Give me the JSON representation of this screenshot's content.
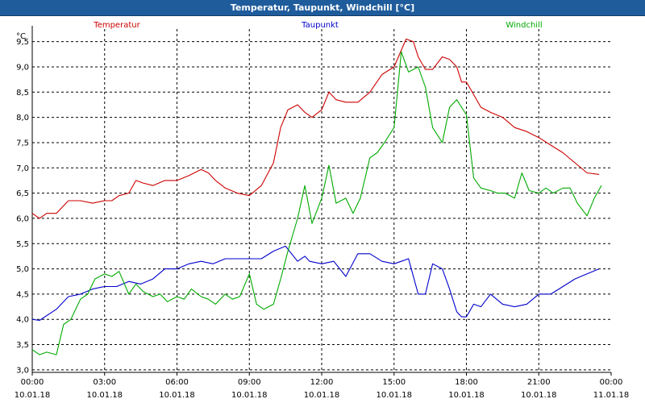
{
  "window": {
    "title": "Temperatur, Taupunkt, Windchill [°C]"
  },
  "colors": {
    "titlebar": "#1f5c9c",
    "temperatur": "#cc0000",
    "taupunkt": "#0000cc",
    "windchill": "#00aa00",
    "grid": "#000000"
  },
  "chart_data": {
    "type": "line",
    "title": "Temperatur, Taupunkt, Windchill [°C]",
    "ylabel": "°C",
    "ylim": [
      2.95,
      9.75
    ],
    "xlim": [
      0,
      24
    ],
    "grid": true,
    "legend_placement": "top",
    "y_ticks": [
      "3,0",
      "3,5",
      "4,0",
      "4,5",
      "5,0",
      "5,5",
      "6,0",
      "6,5",
      "7,0",
      "7,5",
      "8,0",
      "8,5",
      "9,0",
      "9,5"
    ],
    "y_tick_values": [
      3.0,
      3.5,
      4.0,
      4.5,
      5.0,
      5.5,
      6.0,
      6.5,
      7.0,
      7.5,
      8.0,
      8.5,
      9.0,
      9.5
    ],
    "x_tick_hours": [
      0,
      3,
      6,
      9,
      12,
      15,
      18,
      21,
      24
    ],
    "x_tick_times": [
      "00:00",
      "03:00",
      "06:00",
      "09:00",
      "12:00",
      "15:00",
      "18:00",
      "21:00",
      "00:00"
    ],
    "x_tick_dates": [
      "10.01.18",
      "10.01.18",
      "10.01.18",
      "10.01.18",
      "10.01.18",
      "10.01.18",
      "10.01.18",
      "10.01.18",
      "11.01.18"
    ],
    "series": [
      {
        "name": "Temperatur",
        "color": "#cc0000",
        "x": [
          0,
          0.3,
          0.6,
          1,
          1.5,
          2,
          2.5,
          3,
          3.3,
          3.6,
          4,
          4.3,
          4.6,
          5,
          5.5,
          6,
          6.5,
          7,
          7.3,
          7.6,
          8,
          8.5,
          9,
          9.5,
          10,
          10.3,
          10.6,
          11,
          11.3,
          11.6,
          12,
          12.3,
          12.6,
          13,
          13.5,
          14,
          14.5,
          15,
          15.5,
          15.8,
          16,
          16.3,
          16.6,
          17,
          17.3,
          17.6,
          17.8,
          18,
          18.3,
          18.6,
          19,
          19.5,
          20,
          20.5,
          21,
          21.5,
          22,
          22.5,
          23,
          23.5
        ],
        "y": [
          6.1,
          6.0,
          6.1,
          6.1,
          6.35,
          6.35,
          6.3,
          6.35,
          6.35,
          6.45,
          6.5,
          6.75,
          6.7,
          6.65,
          6.75,
          6.75,
          6.85,
          6.97,
          6.9,
          6.75,
          6.6,
          6.5,
          6.45,
          6.65,
          7.1,
          7.8,
          8.15,
          8.25,
          8.1,
          8.0,
          8.15,
          8.5,
          8.35,
          8.3,
          8.3,
          8.5,
          8.85,
          9.0,
          9.55,
          9.5,
          9.2,
          8.95,
          8.95,
          9.2,
          9.15,
          9.0,
          8.7,
          8.7,
          8.45,
          8.2,
          8.1,
          8.0,
          7.8,
          7.72,
          7.6,
          7.45,
          7.3,
          7.1,
          6.9,
          6.87
        ]
      },
      {
        "name": "Taupunkt",
        "color": "#0000cc",
        "x": [
          0,
          0.3,
          1,
          1.5,
          2,
          2.5,
          3,
          3.5,
          4,
          4.5,
          5,
          5.5,
          6,
          6.5,
          7,
          7.5,
          8,
          8.5,
          9,
          9.5,
          10,
          10.5,
          11,
          11.3,
          11.5,
          12,
          12.5,
          13,
          13.5,
          14,
          14.5,
          15,
          15.3,
          15.6,
          16,
          16.3,
          16.6,
          17,
          17.3,
          17.6,
          17.8,
          18,
          18.3,
          18.6,
          19,
          19.5,
          20,
          20.5,
          21,
          21.5,
          22,
          22.5,
          23,
          23.5
        ],
        "y": [
          4.0,
          3.98,
          4.2,
          4.45,
          4.5,
          4.6,
          4.65,
          4.65,
          4.75,
          4.7,
          4.8,
          5.0,
          5.0,
          5.1,
          5.15,
          5.1,
          5.2,
          5.2,
          5.2,
          5.2,
          5.35,
          5.45,
          5.15,
          5.25,
          5.15,
          5.1,
          5.15,
          4.85,
          5.3,
          5.3,
          5.15,
          5.1,
          5.15,
          5.2,
          4.5,
          4.5,
          5.1,
          5.0,
          4.6,
          4.15,
          4.05,
          4.05,
          4.3,
          4.25,
          4.5,
          4.3,
          4.25,
          4.3,
          4.5,
          4.5,
          4.65,
          4.8,
          4.9,
          5.0
        ]
      },
      {
        "name": "Windchill",
        "color": "#00aa00",
        "x": [
          0,
          0.3,
          0.6,
          1,
          1.3,
          1.6,
          2,
          2.3,
          2.6,
          3,
          3.3,
          3.6,
          4,
          4.3,
          4.6,
          5,
          5.3,
          5.6,
          6,
          6.3,
          6.6,
          7,
          7.3,
          7.6,
          8,
          8.3,
          8.6,
          9,
          9.3,
          9.6,
          10,
          10.3,
          10.6,
          11,
          11.3,
          11.6,
          12,
          12.3,
          12.6,
          13,
          13.3,
          13.6,
          14,
          14.3,
          14.6,
          15,
          15.3,
          15.6,
          16,
          16.3,
          16.6,
          17,
          17.3,
          17.6,
          18,
          18.3,
          18.6,
          19,
          19.3,
          19.6,
          20,
          20.3,
          20.6,
          21,
          21.3,
          21.6,
          22,
          22.3,
          22.6,
          23,
          23.3,
          23.6
        ],
        "y": [
          3.4,
          3.3,
          3.35,
          3.3,
          3.9,
          4.0,
          4.4,
          4.5,
          4.8,
          4.9,
          4.85,
          4.95,
          4.5,
          4.7,
          4.55,
          4.45,
          4.5,
          4.35,
          4.45,
          4.4,
          4.6,
          4.45,
          4.4,
          4.3,
          4.5,
          4.4,
          4.45,
          4.9,
          4.3,
          4.2,
          4.3,
          4.8,
          5.35,
          6.0,
          6.65,
          5.9,
          6.4,
          7.05,
          6.3,
          6.4,
          6.1,
          6.4,
          7.2,
          7.3,
          7.5,
          7.8,
          9.3,
          8.9,
          9.0,
          8.6,
          7.8,
          7.5,
          8.2,
          8.35,
          8.05,
          6.8,
          6.6,
          6.55,
          6.5,
          6.5,
          6.4,
          6.9,
          6.55,
          6.5,
          6.6,
          6.5,
          6.6,
          6.6,
          6.3,
          6.05,
          6.4,
          6.65
        ]
      }
    ]
  }
}
